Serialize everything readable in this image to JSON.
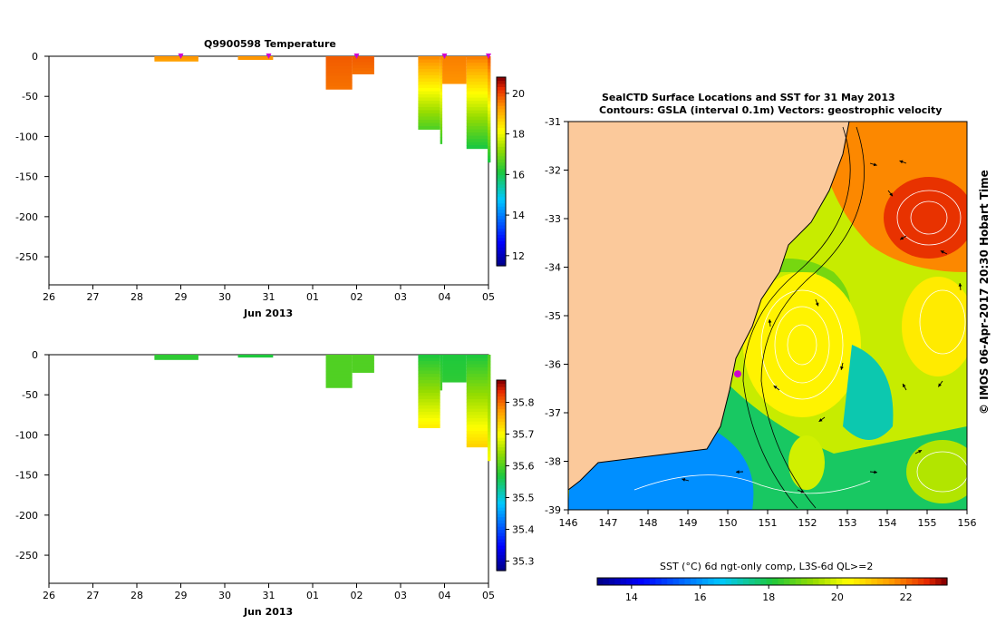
{
  "colors": {
    "land": "#fbc99b",
    "ocean_base": "#e8a020"
  },
  "chart_data": [
    {
      "id": "temperature_section",
      "type": "heatmap",
      "title": "Q9900598  Temperature",
      "xlabel": "Jun 2013",
      "x_tick_labels": [
        "26",
        "27",
        "28",
        "29",
        "30",
        "31",
        "01",
        "02",
        "03",
        "04",
        "05"
      ],
      "x_range_days": [
        0,
        10
      ],
      "y_ticks": [
        0,
        -50,
        -100,
        -150,
        -200,
        -250
      ],
      "ylim": [
        -285,
        0
      ],
      "colorbar": {
        "min": 11.5,
        "max": 20.8,
        "ticks": [
          12,
          14,
          16,
          18,
          20
        ],
        "palette": "jet"
      },
      "profile_markers_day": [
        3,
        5,
        7,
        9,
        10
      ],
      "profiles": [
        {
          "x0": 2.4,
          "x1": 3.4,
          "depth": 6,
          "top": 19.4,
          "bottom": 19.2
        },
        {
          "x0": 4.3,
          "x1": 5.1,
          "depth": 4,
          "top": 19.4,
          "bottom": 19.3
        },
        {
          "x0": 6.3,
          "x1": 6.9,
          "depth": 41,
          "top": 19.9,
          "bottom": 19.7
        },
        {
          "x0": 6.9,
          "x1": 7.4,
          "depth": 22,
          "top": 19.9,
          "bottom": 19.7
        },
        {
          "x0": 8.4,
          "x1": 8.9,
          "depth": 91,
          "top": 19.5,
          "bottom": 16.5
        },
        {
          "x0": 8.9,
          "x1": 8.95,
          "depth": 109,
          "top": 19.5,
          "bottom": 16.3
        },
        {
          "x0": 8.95,
          "x1": 9.5,
          "depth": 34,
          "top": 19.6,
          "bottom": 19.4
        },
        {
          "x0": 9.5,
          "x1": 10.0,
          "depth": 115,
          "top": 19.6,
          "bottom": 16.0
        },
        {
          "x0": 9.98,
          "x1": 10.05,
          "depth": 132,
          "top": 20.0,
          "bottom": 16.0
        }
      ]
    },
    {
      "id": "salinity_section",
      "type": "heatmap",
      "title": "",
      "xlabel": "Jun 2013",
      "x_tick_labels": [
        "26",
        "27",
        "28",
        "29",
        "30",
        "31",
        "01",
        "02",
        "03",
        "04",
        "05"
      ],
      "x_range_days": [
        0,
        10
      ],
      "y_ticks": [
        0,
        -50,
        -100,
        -150,
        -200,
        -250
      ],
      "ylim": [
        -285,
        0
      ],
      "colorbar": {
        "min": 35.27,
        "max": 35.87,
        "ticks": [
          35.3,
          35.4,
          35.5,
          35.6,
          35.7,
          35.8
        ],
        "palette": "jet"
      },
      "profiles": [
        {
          "x0": 2.4,
          "x1": 3.4,
          "depth": 6,
          "top": 35.58,
          "bottom": 35.58
        },
        {
          "x0": 4.3,
          "x1": 5.1,
          "depth": 3,
          "top": 35.57,
          "bottom": 35.57
        },
        {
          "x0": 6.3,
          "x1": 6.9,
          "depth": 41,
          "top": 35.6,
          "bottom": 35.6
        },
        {
          "x0": 6.9,
          "x1": 7.4,
          "depth": 22,
          "top": 35.6,
          "bottom": 35.6
        },
        {
          "x0": 8.4,
          "x1": 8.9,
          "depth": 91,
          "top": 35.57,
          "bottom": 35.72
        },
        {
          "x0": 8.9,
          "x1": 8.95,
          "depth": 44,
          "top": 35.57,
          "bottom": 35.6
        },
        {
          "x0": 8.95,
          "x1": 9.5,
          "depth": 34,
          "top": 35.57,
          "bottom": 35.58
        },
        {
          "x0": 9.5,
          "x1": 10.0,
          "depth": 115,
          "top": 35.57,
          "bottom": 35.74
        },
        {
          "x0": 9.98,
          "x1": 10.05,
          "depth": 132,
          "top": 35.6,
          "bottom": 35.7
        }
      ]
    },
    {
      "id": "sst_map",
      "type": "heatmap",
      "title_line1": "SealCTD Surface Locations and SST for 31 May 2013",
      "title_line2": "Contours: GSLA (interval 0.1m) Vectors: geostrophic velocity",
      "x_ticks": [
        146,
        147,
        148,
        149,
        150,
        151,
        152,
        153,
        154,
        155,
        156
      ],
      "y_ticks": [
        -31,
        -32,
        -33,
        -34,
        -35,
        -36,
        -37,
        -38,
        -39
      ],
      "xlim": [
        146,
        156
      ],
      "ylim": [
        -39,
        -31
      ],
      "side_label": "© IMOS 06-Apr-2017 20:30 Hobart Time",
      "colorbar": {
        "label": "SST (°C) 6d ngt-only comp, L3S-6d QL>=2",
        "min": 13,
        "max": 23.2,
        "ticks": [
          14,
          16,
          18,
          20,
          22
        ],
        "palette": "jet"
      },
      "location_marker": {
        "lon": 150.25,
        "lat": -36.2
      }
    }
  ]
}
